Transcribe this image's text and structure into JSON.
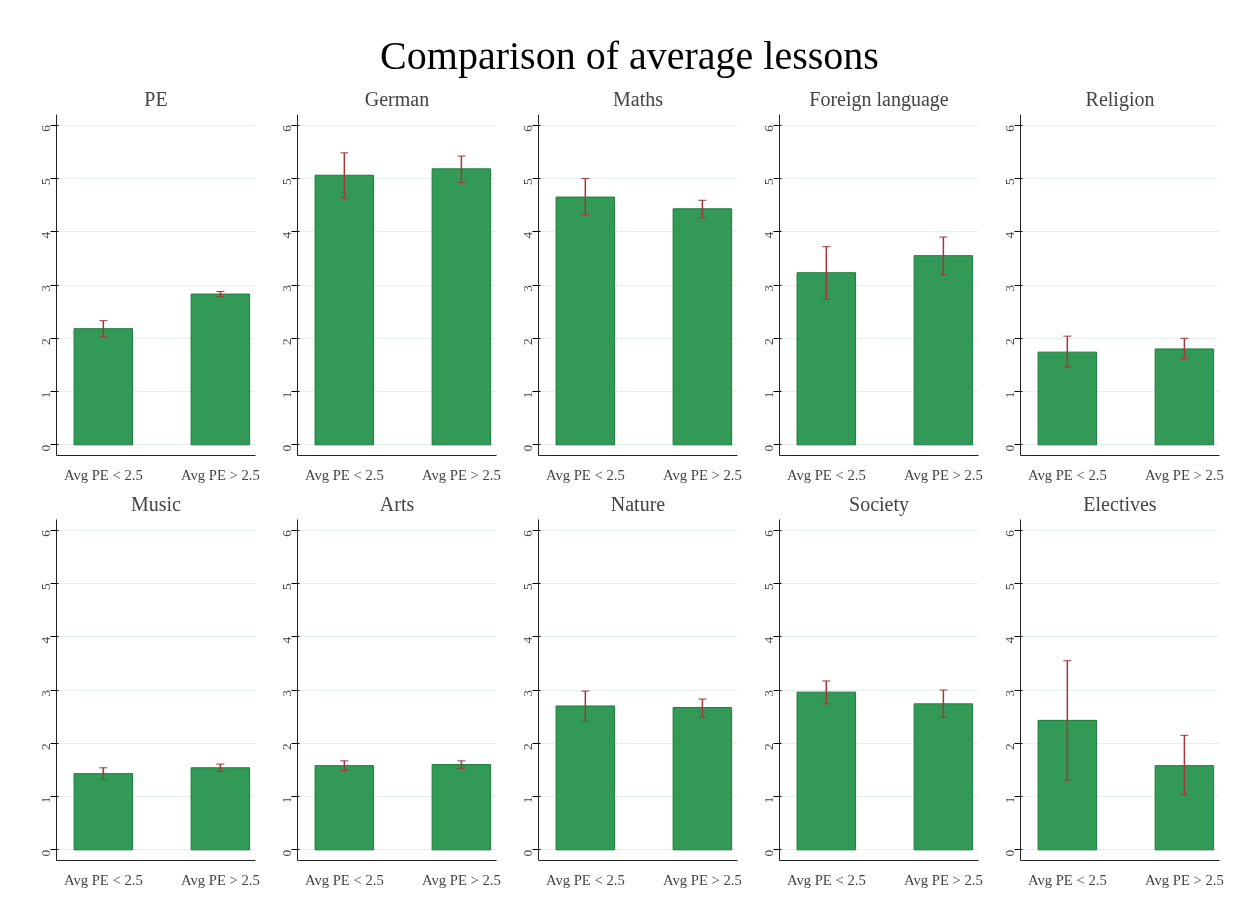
{
  "chart_data": [
    {
      "type": "other",
      "title": "Comparison of average lessons"
    },
    {
      "type": "bar",
      "title": "PE",
      "categories": [
        "Avg PE < 2.5",
        "Avg PE > 2.5"
      ],
      "values": [
        2.18,
        2.83
      ],
      "errors": [
        [
          2.03,
          2.33
        ],
        [
          2.78,
          2.88
        ]
      ],
      "color": "#339957",
      "ylim": [
        -0.2,
        6.2
      ],
      "yticks": [
        0,
        1,
        2,
        3,
        4,
        5,
        6
      ],
      "grid": "y"
    },
    {
      "type": "bar",
      "title": "German",
      "categories": [
        "Avg PE < 2.5",
        "Avg PE > 2.5"
      ],
      "values": [
        5.06,
        5.18
      ],
      "errors": [
        [
          4.63,
          5.48
        ],
        [
          4.92,
          5.42
        ]
      ],
      "color": "#339957",
      "ylim": [
        -0.2,
        6.2
      ],
      "yticks": [
        0,
        1,
        2,
        3,
        4,
        5,
        6
      ],
      "grid": "y"
    },
    {
      "type": "bar",
      "title": "Maths",
      "categories": [
        "Avg PE < 2.5",
        "Avg PE > 2.5"
      ],
      "values": [
        4.65,
        4.43
      ],
      "errors": [
        [
          4.32,
          5.0
        ],
        [
          4.26,
          4.59
        ]
      ],
      "color": "#339957",
      "ylim": [
        -0.2,
        6.2
      ],
      "yticks": [
        0,
        1,
        2,
        3,
        4,
        5,
        6
      ],
      "grid": "y"
    },
    {
      "type": "bar",
      "title": "Foreign language",
      "categories": [
        "Avg PE < 2.5",
        "Avg PE > 2.5"
      ],
      "values": [
        3.23,
        3.55
      ],
      "errors": [
        [
          2.73,
          3.72
        ],
        [
          3.19,
          3.9
        ]
      ],
      "color": "#339957",
      "ylim": [
        -0.2,
        6.2
      ],
      "yticks": [
        0,
        1,
        2,
        3,
        4,
        5,
        6
      ],
      "grid": "y"
    },
    {
      "type": "bar",
      "title": "Religion",
      "categories": [
        "Avg PE < 2.5",
        "Avg PE > 2.5"
      ],
      "values": [
        1.74,
        1.8
      ],
      "errors": [
        [
          1.46,
          2.04
        ],
        [
          1.62,
          2.0
        ]
      ],
      "color": "#339957",
      "ylim": [
        -0.2,
        6.2
      ],
      "yticks": [
        0,
        1,
        2,
        3,
        4,
        5,
        6
      ],
      "grid": "y"
    },
    {
      "type": "bar",
      "title": "Music",
      "categories": [
        "Avg PE < 2.5",
        "Avg PE > 2.5"
      ],
      "values": [
        1.43,
        1.54
      ],
      "errors": [
        [
          1.32,
          1.54
        ],
        [
          1.47,
          1.61
        ]
      ],
      "color": "#339957",
      "ylim": [
        -0.2,
        6.2
      ],
      "yticks": [
        0,
        1,
        2,
        3,
        4,
        5,
        6
      ],
      "grid": "y"
    },
    {
      "type": "bar",
      "title": "Arts",
      "categories": [
        "Avg PE < 2.5",
        "Avg PE > 2.5"
      ],
      "values": [
        1.58,
        1.6
      ],
      "errors": [
        [
          1.49,
          1.67
        ],
        [
          1.53,
          1.67
        ]
      ],
      "color": "#339957",
      "ylim": [
        -0.2,
        6.2
      ],
      "yticks": [
        0,
        1,
        2,
        3,
        4,
        5,
        6
      ],
      "grid": "y"
    },
    {
      "type": "bar",
      "title": "Nature",
      "categories": [
        "Avg PE < 2.5",
        "Avg PE > 2.5"
      ],
      "values": [
        2.7,
        2.67
      ],
      "errors": [
        [
          2.41,
          2.98
        ],
        [
          2.49,
          2.83
        ]
      ],
      "color": "#339957",
      "ylim": [
        -0.2,
        6.2
      ],
      "yticks": [
        0,
        1,
        2,
        3,
        4,
        5,
        6
      ],
      "grid": "y"
    },
    {
      "type": "bar",
      "title": "Society",
      "categories": [
        "Avg PE < 2.5",
        "Avg PE > 2.5"
      ],
      "values": [
        2.96,
        2.74
      ],
      "errors": [
        [
          2.74,
          3.17
        ],
        [
          2.49,
          3.0
        ]
      ],
      "color": "#339957",
      "ylim": [
        -0.2,
        6.2
      ],
      "yticks": [
        0,
        1,
        2,
        3,
        4,
        5,
        6
      ],
      "grid": "y"
    },
    {
      "type": "bar",
      "title": "Electives",
      "categories": [
        "Avg PE < 2.5",
        "Avg PE > 2.5"
      ],
      "values": [
        2.43,
        1.58
      ],
      "errors": [
        [
          1.31,
          3.55
        ],
        [
          1.03,
          2.15
        ]
      ],
      "color": "#339957",
      "ylim": [
        -0.2,
        6.2
      ],
      "yticks": [
        0,
        1,
        2,
        3,
        4,
        5,
        6
      ],
      "grid": "y"
    }
  ]
}
